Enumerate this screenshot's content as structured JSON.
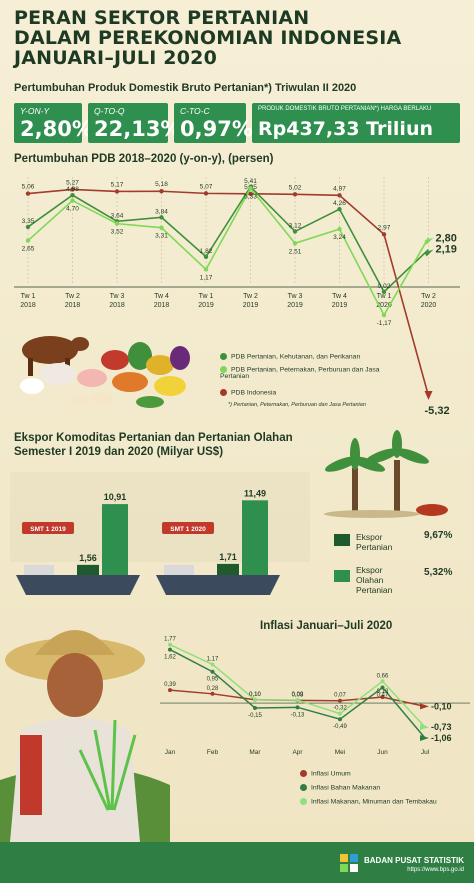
{
  "title_lines": [
    "PERAN SEKTOR PERTANIAN",
    "DALAM PEREKONOMIAN INDONESIA",
    "JANUARI–JULI 2020"
  ],
  "pdb_heading": "Pertumbuhan Produk Domestik Bruto Pertanian*) Triwulan II 2020",
  "kpis": [
    {
      "label": "Y-ON-Y",
      "value": "2,80%"
    },
    {
      "label": "Q-TO-Q",
      "value": "22,13%"
    },
    {
      "label": "C-TO-C",
      "value": "0,97%"
    },
    {
      "label": "PRODUK DOMESTIK BRUTO PERTANIAN*) HARGA BERLAKU",
      "value": "Rp437,33 Triliun"
    }
  ],
  "chart1_title": "Pertumbuhan PDB 2018–2020 (y-on-y), (persen)",
  "chart1_legend": [
    "PDB Pertanian, Kehutanan, dan Perikanan",
    "PDB Pertanian, Peternakan, Perburuan dan Jasa Pertanian",
    "PDB Indonesia"
  ],
  "chart1_note": "*) Pertanian, Peternakan, Perburuan dan Jasa Pertanian",
  "ekspor_title_lines": [
    "Ekspor Komoditas Pertanian dan Pertanian Olahan",
    "Semester I 2019 dan 2020 (Milyar US$)"
  ],
  "ekspor": {
    "periods": [
      "SMT 1 2019",
      "SMT 1 2020"
    ],
    "pertanian": [
      "1,56",
      "1,71"
    ],
    "olahan": [
      "10,91",
      "11,49"
    ],
    "pertanian_values": [
      1.56,
      1.71
    ],
    "olahan_values": [
      10.91,
      11.49
    ],
    "legend": [
      {
        "label_lines": [
          "Ekspor",
          "Pertanian"
        ],
        "pct": "9,67%"
      },
      {
        "label_lines": [
          "Ekspor",
          "Olahan",
          "Pertanian"
        ],
        "pct": "5,32%"
      }
    ]
  },
  "chart2_title": "Inflasi Januari–Juli 2020",
  "chart2_legend": [
    "Inflasi Umum",
    "Inflasi Bahan Makanan",
    "Inflasi Makanan, Minuman dan Tembakau"
  ],
  "footer": {
    "org": "BADAN PUSAT STATISTIK",
    "url": "https://www.bps.go.id"
  },
  "colors": {
    "pdb_agri": "#3f8f3c",
    "pdb_agri2": "#7ed957",
    "pdb_indo": "#a13b2a",
    "inf_umum": "#a13b2a",
    "inf_bahan": "#2f7f45",
    "inf_mamin": "#8fe07a"
  },
  "chart_data": [
    {
      "type": "line",
      "title": "Pertumbuhan PDB 2018–2020 (y-on-y), (persen)",
      "categories": [
        "Tw 1 2018",
        "Tw 2 2018",
        "Tw 3 2018",
        "Tw 4 2018",
        "Tw 1 2019",
        "Tw 2 2019",
        "Tw 3 2019",
        "Tw 4 2019",
        "Tw 1 2020",
        "Tw 2 2020"
      ],
      "x_labels": [
        [
          "Tw 1",
          "2018"
        ],
        [
          "Tw 2",
          "2018"
        ],
        [
          "Tw 3",
          "2018"
        ],
        [
          "Tw 4",
          "2018"
        ],
        [
          "Tw 1",
          "2019"
        ],
        [
          "Tw 2",
          "2019"
        ],
        [
          "Tw 3",
          "2019"
        ],
        [
          "Tw 4",
          "2019"
        ],
        [
          "Tw 1",
          "2020"
        ],
        [
          "Tw 2",
          "2020"
        ]
      ],
      "series": [
        {
          "name": "PDB Indonesia",
          "values": [
            5.06,
            5.27,
            5.17,
            5.18,
            5.07,
            5.05,
            5.02,
            4.97,
            2.97,
            -5.32
          ],
          "labels": [
            "5,06",
            "5,27",
            "5,17",
            "5,18",
            "5,07",
            "5,05",
            "5,02",
            "4,97",
            "2,97",
            "-5,32"
          ]
        },
        {
          "name": "PDB Pertanian, Kehutanan, dan Perikanan",
          "values": [
            3.35,
            4.98,
            3.64,
            3.84,
            1.82,
            5.41,
            3.12,
            4.26,
            0.02,
            2.19
          ],
          "labels": [
            "3,35",
            "4,98",
            "3,64",
            "3,84",
            "1,82",
            "5,41",
            "3,12",
            "4,26",
            "0,02",
            "2,19"
          ]
        },
        {
          "name": "PDB Pertanian, Peternakan, Perburuan dan Jasa Pertanian",
          "values": [
            2.65,
            4.7,
            3.52,
            3.31,
            1.17,
            5.33,
            2.51,
            3.24,
            -1.17,
            2.8
          ],
          "labels": [
            "2,65",
            "4,70",
            "3,52",
            "3,31",
            "1,17",
            "5,33",
            "2,51",
            "3,24",
            "-1,17",
            "2,80"
          ]
        }
      ]
    },
    {
      "type": "line",
      "title": "Inflasi Januari–Juli 2020",
      "categories": [
        "Jan",
        "Feb",
        "Mar",
        "Apr",
        "Mei",
        "Jun",
        "Jul"
      ],
      "series": [
        {
          "name": "Inflasi Umum",
          "values": [
            0.39,
            0.28,
            0.1,
            0.08,
            0.07,
            0.18,
            -0.1
          ],
          "labels": [
            "0,39",
            "0,28",
            "0,10",
            "0,08",
            "0,07",
            "0,18",
            "-0,10"
          ]
        },
        {
          "name": "Inflasi Bahan Makanan",
          "values": [
            1.62,
            0.95,
            -0.15,
            -0.13,
            -0.49,
            0.47,
            -1.06
          ],
          "labels": [
            "1,62",
            "0,95",
            "-0,15",
            "-0,13",
            "-0,49",
            "0,47",
            "-1,06"
          ]
        },
        {
          "name": "Inflasi Makanan, Minuman dan Tembakau",
          "values": [
            1.77,
            1.17,
            0.1,
            0.09,
            -0.32,
            0.66,
            -0.73
          ],
          "labels": [
            "1,77",
            "1,17",
            "0,10",
            "0,09",
            "-0,32",
            "0,66",
            "-0,73"
          ]
        }
      ]
    }
  ]
}
